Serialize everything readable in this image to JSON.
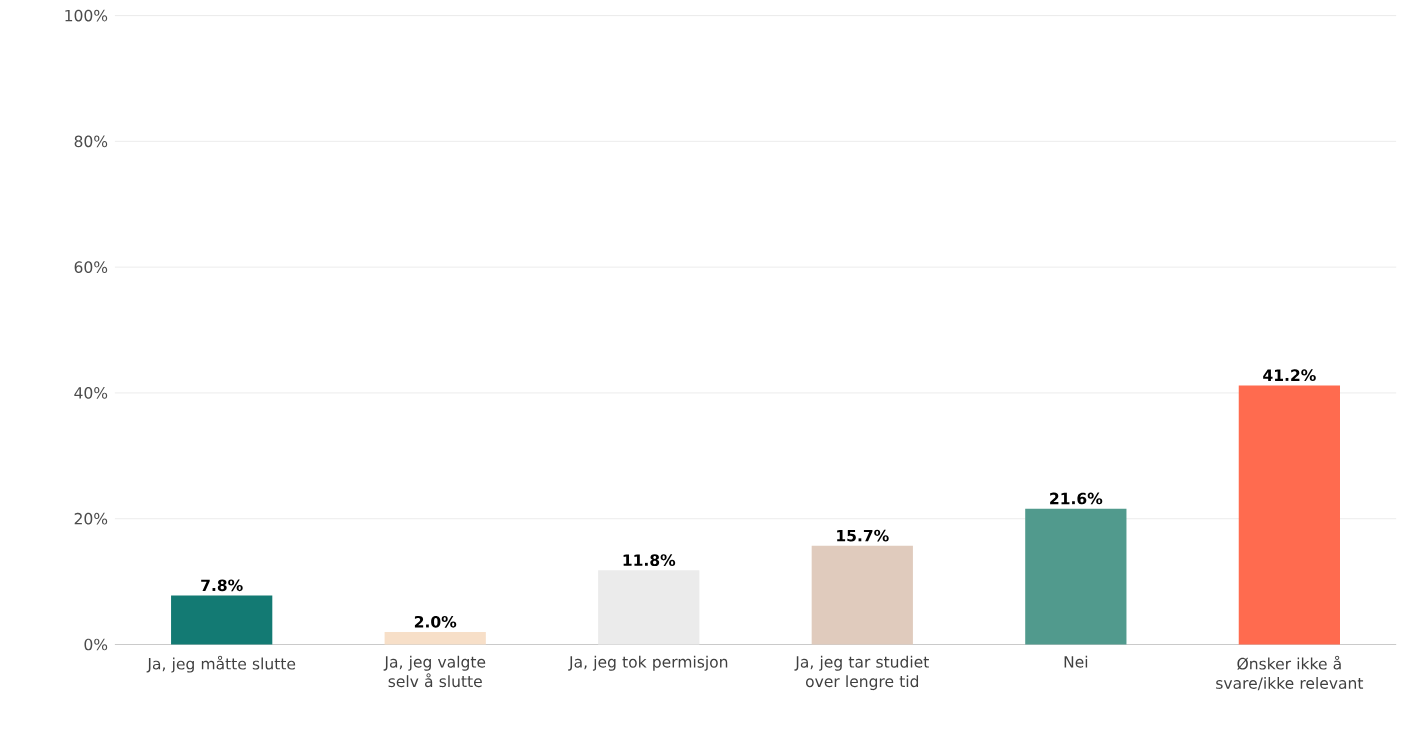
{
  "chart_data": {
    "type": "bar",
    "categories": [
      "Ja, jeg måtte slutte",
      "Ja, jeg valgte selv å slutte",
      "Ja, jeg tok permisjon",
      "Ja, jeg tar studiet over lengre tid",
      "Nei",
      "Ønsker ikke å svare/ikke relevant"
    ],
    "values": [
      7.8,
      2.0,
      11.8,
      15.7,
      21.6,
      41.2
    ],
    "value_labels": [
      "7.8%",
      "2.0%",
      "11.8%",
      "15.7%",
      "21.6%",
      "41.2%"
    ],
    "colors": [
      "#137a73",
      "#f7dfc8",
      "#ebebeb",
      "#e0cbbd",
      "#519a8d",
      "#ff6b4f"
    ],
    "ylim": [
      0,
      100
    ],
    "yticks": [
      {
        "value": 0,
        "label": "0%"
      },
      {
        "value": 20,
        "label": "20%"
      },
      {
        "value": 40,
        "label": "40%"
      },
      {
        "value": 60,
        "label": "60%"
      },
      {
        "value": 80,
        "label": "80%"
      },
      {
        "value": 100,
        "label": "100%"
      }
    ],
    "grid": "y"
  }
}
